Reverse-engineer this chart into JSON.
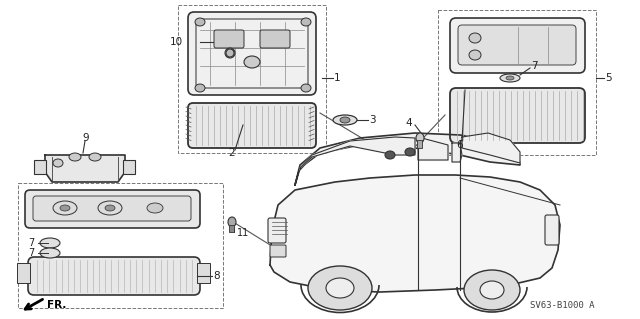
{
  "background_color": "#ffffff",
  "diagram_code": "SV63-B1000 A",
  "line_color": "#333333",
  "text_color": "#222222",
  "fig_w": 6.4,
  "fig_h": 3.19,
  "dpi": 100
}
